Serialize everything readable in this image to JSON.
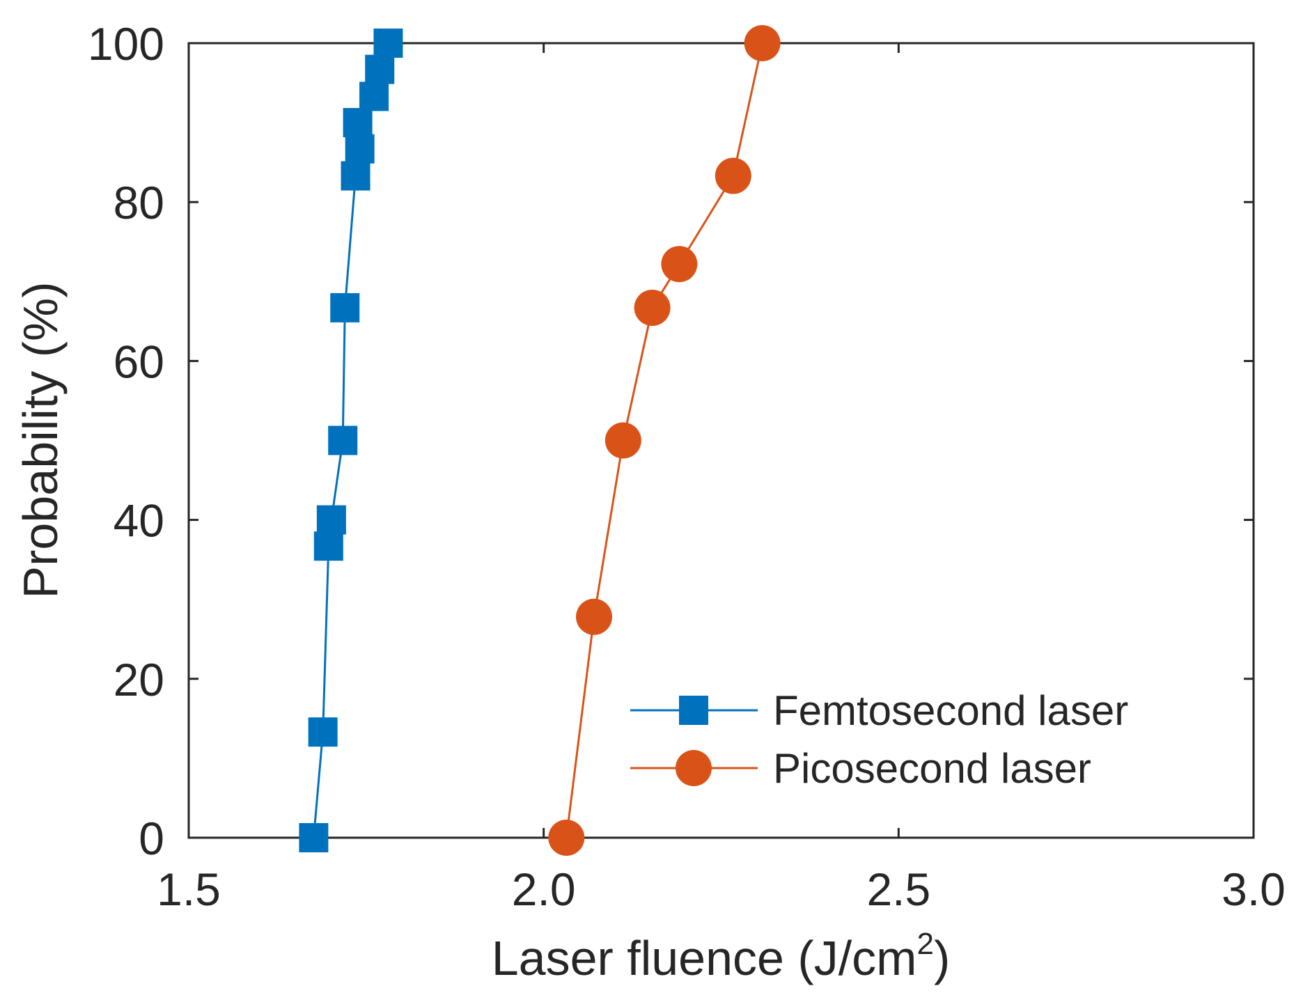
{
  "chart_data": {
    "type": "line",
    "xlabel": "Laser fluence (J/cm",
    "xlabel_superscript": "2",
    "xlabel_close": ")",
    "ylabel": "Probability (%)",
    "xlim": [
      1.5,
      3.0
    ],
    "ylim": [
      0,
      100
    ],
    "xticks": [
      1.5,
      2.0,
      2.5,
      3.0
    ],
    "xtick_labels": [
      "1.5",
      "2.0",
      "2.5",
      "3.0"
    ],
    "yticks": [
      0,
      20,
      40,
      60,
      80,
      100
    ],
    "ytick_labels": [
      "0",
      "20",
      "40",
      "60",
      "80",
      "100"
    ],
    "grid": false,
    "legend_position": "bottom-right",
    "series": [
      {
        "name": "Femtosecond laser",
        "marker": "square",
        "color": "#0072BD",
        "x": [
          1.676,
          1.689,
          1.697,
          1.701,
          1.717,
          1.72,
          1.735,
          1.741,
          1.738,
          1.761,
          1.769,
          1.781
        ],
        "y": [
          0,
          13.3,
          36.7,
          40,
          50,
          66.7,
          83.3,
          86.7,
          90,
          93.3,
          96.7,
          100
        ]
      },
      {
        "name": "Picosecond laser",
        "marker": "circle",
        "color": "#D95319",
        "x": [
          2.032,
          2.071,
          2.112,
          2.153,
          2.191,
          2.267,
          2.308
        ],
        "y": [
          0,
          27.8,
          50,
          66.7,
          72.2,
          83.3,
          100
        ]
      }
    ]
  }
}
